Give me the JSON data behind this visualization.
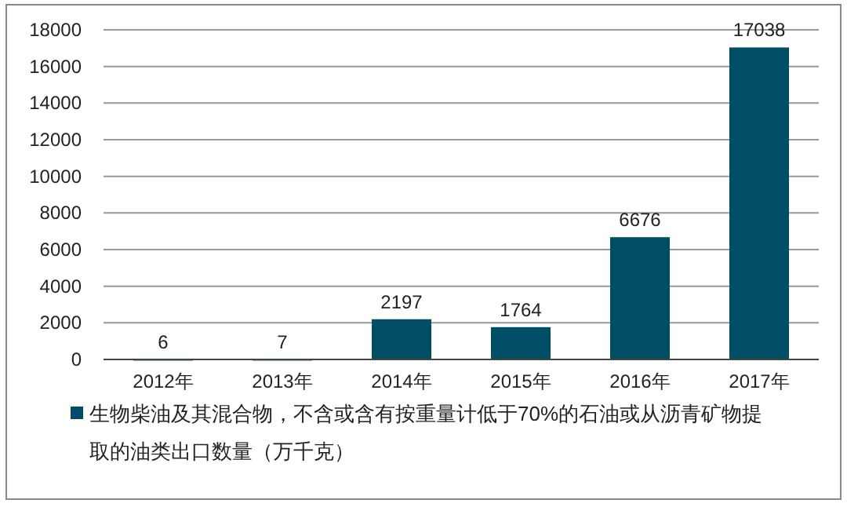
{
  "chart_data": {
    "type": "bar",
    "categories": [
      "2012年",
      "2013年",
      "2014年",
      "2015年",
      "2016年",
      "2017年"
    ],
    "series": [
      {
        "name": "生物柴油及其混合物，不含或含有按重量计低于70%的石油或从沥青矿物提取的油类出口数量（万千克）",
        "color": "#004d66",
        "values": [
          6,
          7,
          2197,
          1764,
          6676,
          17038
        ]
      }
    ],
    "ylim": [
      0,
      18000
    ],
    "yticks": [
      0,
      2000,
      4000,
      6000,
      8000,
      10000,
      12000,
      14000,
      16000,
      18000
    ],
    "grid": "y",
    "data_labels": true,
    "legend": "bottom"
  }
}
